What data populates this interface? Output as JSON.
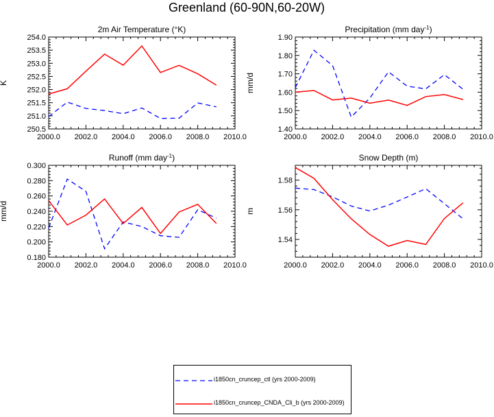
{
  "figure_title": "Greenland (60-90N,60-20W)",
  "chart_data": [
    {
      "type": "line",
      "title": "2m Air Temperature (°K)",
      "ylabel": "K",
      "xlabel": "",
      "xlim": [
        2000,
        2010
      ],
      "ylim": [
        250.5,
        254.0
      ],
      "xticks": [
        "2000.0",
        "2002.0",
        "2004.0",
        "2006.0",
        "2008.0",
        "2010.0"
      ],
      "yticks": [
        "250.5",
        "251.0",
        "251.5",
        "252.0",
        "252.5",
        "253.0",
        "253.5",
        "254.0"
      ],
      "x": [
        2000,
        2001,
        2002,
        2003,
        2004,
        2005,
        2006,
        2007,
        2008,
        2009
      ],
      "series": [
        {
          "name": "i1850cn_cruncep_ctl (yrs 2000-2009)",
          "style": "dashed",
          "color": "#0000ff",
          "values": [
            250.97,
            251.52,
            251.28,
            251.2,
            251.08,
            251.3,
            250.9,
            250.91,
            251.49,
            251.34
          ]
        },
        {
          "name": "i1850cn_cruncep_CNDA_Cli_b (yrs 2000-2009)",
          "style": "solid",
          "color": "#ff0000",
          "values": [
            251.83,
            252.03,
            252.7,
            253.35,
            252.93,
            253.66,
            252.65,
            252.92,
            252.6,
            252.17
          ]
        }
      ]
    },
    {
      "type": "line",
      "title": "Precipitation (mm day-1)",
      "ylabel": "mm/d",
      "xlabel": "",
      "xlim": [
        2000,
        2010
      ],
      "ylim": [
        1.4,
        1.9
      ],
      "xticks": [
        "2000.0",
        "2002.0",
        "2004.0",
        "2006.0",
        "2008.0",
        "2010.0"
      ],
      "yticks": [
        "1.40",
        "1.50",
        "1.60",
        "1.70",
        "1.80",
        "1.90"
      ],
      "x": [
        2000,
        2001,
        2002,
        2003,
        2004,
        2005,
        2006,
        2007,
        2008,
        2009
      ],
      "series": [
        {
          "name": "i1850cn_cruncep_ctl (yrs 2000-2009)",
          "style": "dashed",
          "color": "#0000ff",
          "values": [
            1.625,
            1.828,
            1.745,
            1.465,
            1.568,
            1.711,
            1.633,
            1.618,
            1.695,
            1.616
          ]
        },
        {
          "name": "i1850cn_cruncep_CNDA_Cli_b (yrs 2000-2009)",
          "style": "solid",
          "color": "#ff0000",
          "values": [
            1.6,
            1.609,
            1.558,
            1.568,
            1.54,
            1.557,
            1.528,
            1.576,
            1.587,
            1.56
          ]
        }
      ]
    },
    {
      "type": "line",
      "title": "Runoff (mm day-1)",
      "ylabel": "mm/d",
      "xlabel": "",
      "xlim": [
        2000,
        2010
      ],
      "ylim": [
        0.18,
        0.3
      ],
      "xticks": [
        "2000.0",
        "2002.0",
        "2004.0",
        "2006.0",
        "2008.0",
        "2010.0"
      ],
      "yticks": [
        "0.180",
        "0.200",
        "0.220",
        "0.240",
        "0.260",
        "0.280",
        "0.300"
      ],
      "x": [
        2000,
        2001,
        2002,
        2003,
        2004,
        2005,
        2006,
        2007,
        2008,
        2009
      ],
      "series": [
        {
          "name": "i1850cn_cruncep_ctl (yrs 2000-2009)",
          "style": "dashed",
          "color": "#0000ff",
          "values": [
            0.218,
            0.282,
            0.266,
            0.191,
            0.226,
            0.22,
            0.208,
            0.206,
            0.242,
            0.231
          ]
        },
        {
          "name": "i1850cn_cruncep_CNDA_Cli_b (yrs 2000-2009)",
          "style": "solid",
          "color": "#ff0000",
          "values": [
            0.254,
            0.222,
            0.235,
            0.256,
            0.224,
            0.245,
            0.211,
            0.239,
            0.249,
            0.224
          ]
        }
      ]
    },
    {
      "type": "line",
      "title": "Snow Depth (m)",
      "ylabel": "m",
      "xlabel": "",
      "xlim": [
        2000,
        2010
      ],
      "ylim": [
        1.528,
        1.59
      ],
      "xticks": [
        "2000.0",
        "2002.0",
        "2004.0",
        "2006.0",
        "2008.0",
        "2010.0"
      ],
      "yticks": [
        "1.54",
        "1.56",
        "1.58"
      ],
      "ytick_values": [
        1.54,
        1.56,
        1.58
      ],
      "x": [
        2000,
        2001,
        2002,
        2003,
        2004,
        2005,
        2006,
        2007,
        2008,
        2009
      ],
      "series": [
        {
          "name": "i1850cn_cruncep_ctl (yrs 2000-2009)",
          "style": "dashed",
          "color": "#0000ff",
          "values": [
            1.5746,
            1.5736,
            1.5687,
            1.5625,
            1.5592,
            1.5631,
            1.5686,
            1.5742,
            1.5641,
            1.5539
          ]
        },
        {
          "name": "i1850cn_cruncep_CNDA_Cli_b (yrs 2000-2009)",
          "style": "solid",
          "color": "#ff0000",
          "values": [
            1.5885,
            1.5812,
            1.5668,
            1.5539,
            1.5433,
            1.5354,
            1.5393,
            1.5366,
            1.5541,
            1.5647
          ]
        }
      ]
    }
  ],
  "legend": [
    {
      "label": "i1850cn_cruncep_ctl (yrs 2000-2009)",
      "style": "dashed",
      "color": "#0000ff"
    },
    {
      "label": "i1850cn_cruncep_CNDA_Cli_b (yrs 2000-2009)",
      "style": "solid",
      "color": "#ff0000"
    }
  ]
}
